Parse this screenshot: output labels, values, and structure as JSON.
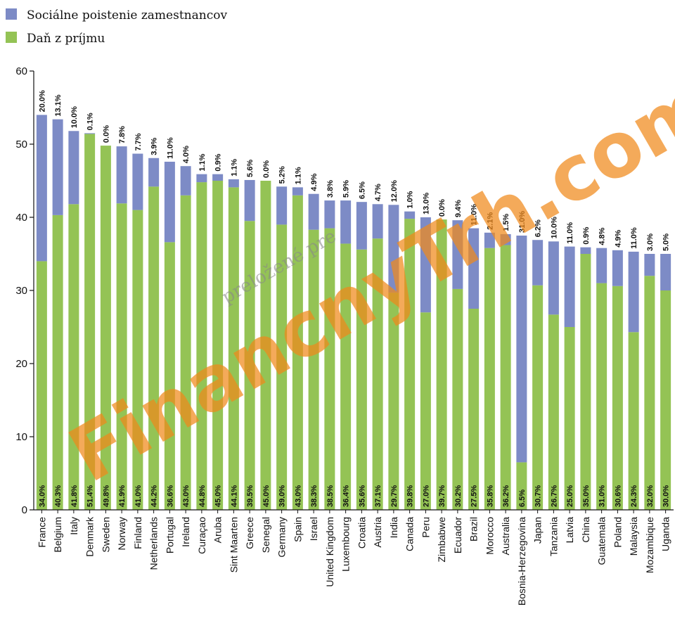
{
  "legend": {
    "social": "Sociálne poistenie zamestnancov",
    "income": "Daň z príjmu"
  },
  "colors": {
    "social": "#7d8bc6",
    "income": "#94c355",
    "watermark": "#f08a1c"
  },
  "watermark": {
    "main": "FinancnyTrh.com",
    "sub": "preložené pre"
  },
  "chart_data": {
    "type": "bar",
    "stacked": true,
    "ylim": [
      0,
      60
    ],
    "yticks": [
      0,
      10,
      20,
      30,
      40,
      50,
      60
    ],
    "grid": false,
    "legend_position": "top-left",
    "categories": [
      "France",
      "Belgium",
      "Italy",
      "Denmark",
      "Sweden",
      "Norway",
      "Finland",
      "Netherlands",
      "Portugal",
      "Ireland",
      "Curaçao",
      "Aruba",
      "Sint Maarten",
      "Greece",
      "Senegal",
      "Germany",
      "Spain",
      "Israel",
      "United Kingdom",
      "Luxembourg",
      "Croatia",
      "Austria",
      "India",
      "Canada",
      "Peru",
      "Zimbabwe",
      "Ecuador",
      "Brazil",
      "Morocco",
      "Australia",
      "Bosnia-Herzegovina",
      "Japan",
      "Tanzania",
      "Latvia",
      "China",
      "Guatemala",
      "Poland",
      "Malaysia",
      "Mozambique",
      "Uganda"
    ],
    "series": [
      {
        "name": "Daň z príjmu",
        "values": [
          34.0,
          40.3,
          41.8,
          51.4,
          49.8,
          41.9,
          41.0,
          44.2,
          36.6,
          43.0,
          44.8,
          45.0,
          44.1,
          39.5,
          45.0,
          39.0,
          43.0,
          38.3,
          38.5,
          36.4,
          35.6,
          37.1,
          29.7,
          39.8,
          27.0,
          39.7,
          30.2,
          27.5,
          35.8,
          36.2,
          6.5,
          30.7,
          26.7,
          25.0,
          35.0,
          31.0,
          30.6,
          24.3,
          32.0,
          30.0
        ],
        "labels": [
          "34.0%",
          "40.3%",
          "41.8%",
          "51.4%",
          "49.8%",
          "41.9%",
          "41.0%",
          "44.2%",
          "36.6%",
          "43.0%",
          "44.8%",
          "45.0%",
          "44.1%",
          "39.5%",
          "45.0%",
          "39.0%",
          "43.0%",
          "38.3%",
          "38.5%",
          "36.4%",
          "35.6%",
          "37.1%",
          "29.7%",
          "39.8%",
          "27.0%",
          "39.7%",
          "30.2%",
          "27.5%",
          "35.8%",
          "36.2%",
          "6.5%",
          "30.7%",
          "26.7%",
          "25.0%",
          "35.0%",
          "31.0%",
          "30.6%",
          "24.3%",
          "32.0%",
          "30.0%"
        ]
      },
      {
        "name": "Sociálne poistenie zamestnancov",
        "values": [
          20.0,
          13.1,
          10.0,
          0.1,
          0.0,
          7.8,
          7.7,
          3.9,
          11.0,
          4.0,
          1.1,
          0.9,
          1.1,
          5.6,
          0.0,
          5.2,
          1.1,
          4.9,
          3.8,
          5.9,
          6.5,
          4.7,
          12.0,
          1.0,
          13.0,
          0.0,
          9.4,
          11.0,
          2.1,
          1.5,
          31.0,
          6.2,
          10.0,
          11.0,
          0.9,
          4.8,
          4.9,
          11.0,
          3.0,
          5.0
        ],
        "labels": [
          "20.0%",
          "13.1%",
          "10.0%",
          "0.1%",
          "0.0%",
          "7.8%",
          "7.7%",
          "3.9%",
          "11.0%",
          "4.0%",
          "1.1%",
          "0.9%",
          "1.1%",
          "5.6%",
          "0.0%",
          "5.2%",
          "1.1%",
          "4.9%",
          "3.8%",
          "5.9%",
          "6.5%",
          "4.7%",
          "12.0%",
          "1.0%",
          "13.0%",
          "0.0%",
          "9.4%",
          "11.0%",
          "2.1%",
          "1.5%",
          "31.0%",
          "6.2%",
          "10.0%",
          "11.0%",
          "0.9%",
          "4.8%",
          "4.9%",
          "11.0%",
          "3.0%",
          "5.0%"
        ]
      }
    ]
  }
}
